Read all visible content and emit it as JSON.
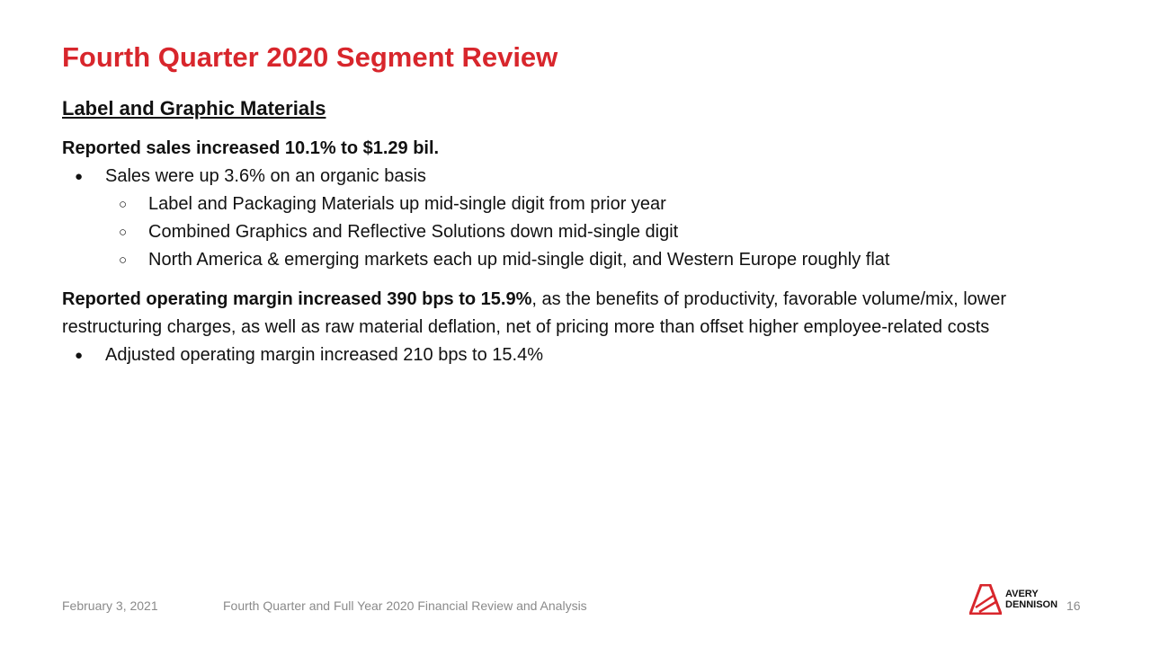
{
  "title": "Fourth Quarter 2020 Segment Review",
  "section_heading": "Label and Graphic Materials",
  "sales": {
    "lead": "Reported sales increased 10.1% to $1.29 bil.",
    "bullet": "Sales were up 3.6% on an organic basis",
    "sub_bullets": [
      "Label and Packaging Materials up mid-single digit from prior year",
      "Combined Graphics and Reflective Solutions down mid-single digit",
      "North America & emerging markets each up mid-single digit, and Western Europe roughly flat"
    ]
  },
  "margin": {
    "lead_bold": "Reported operating margin increased 390 bps to 15.9%",
    "lead_rest": ", as the benefits of productivity, favorable volume/mix, lower restructuring charges, as well as raw material deflation, net of pricing more than offset higher employee-related costs",
    "bullet": "Adjusted operating margin increased 210 bps to 15.4%"
  },
  "footer": {
    "date": "February 3, 2021",
    "title": "Fourth Quarter and Full Year 2020 Financial Review and Analysis",
    "page_number": "16",
    "logo_line1": "AVERY",
    "logo_line2": "DENNISON"
  },
  "colors": {
    "accent": "#d8262c",
    "footer_text": "#8a8a8a"
  },
  "icons": {
    "logo": "avery-dennison-logo-icon"
  }
}
